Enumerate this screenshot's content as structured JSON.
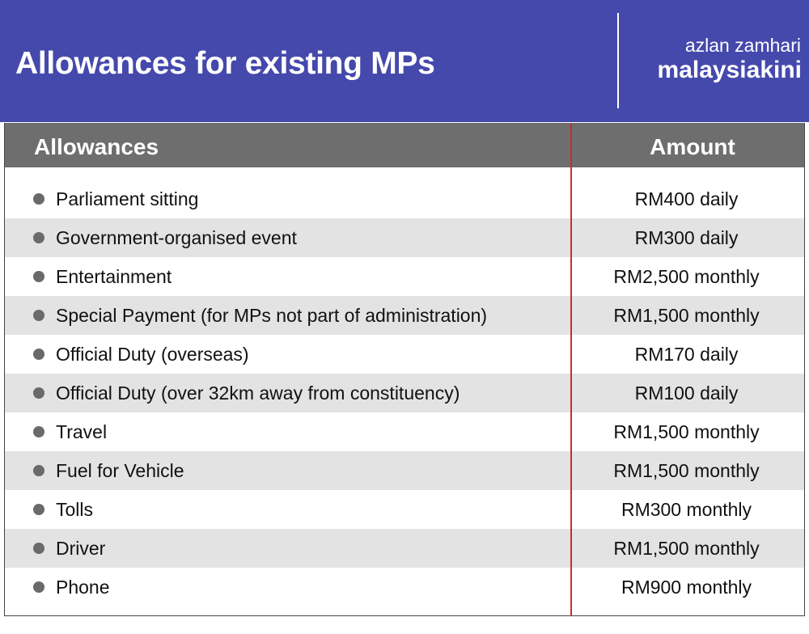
{
  "header": {
    "title": "Allowances for existing MPs",
    "author": "azlan zamhari",
    "brand": "malaysiakini"
  },
  "table": {
    "columns": [
      "Allowances",
      "Amount"
    ],
    "rows": [
      {
        "allowance": "Parliament sitting",
        "amount": "RM400 daily"
      },
      {
        "allowance": "Government-organised event",
        "amount": "RM300 daily"
      },
      {
        "allowance": "Entertainment",
        "amount": "RM2,500 monthly"
      },
      {
        "allowance": "Special Payment (for MPs not part of administration)",
        "amount": "RM1,500 monthly"
      },
      {
        "allowance": "Official Duty (overseas)",
        "amount": "RM170 daily"
      },
      {
        "allowance": "Official Duty (over 32km away from constituency)",
        "amount": "RM100 daily"
      },
      {
        "allowance": "Travel",
        "amount": "RM1,500 monthly"
      },
      {
        "allowance": "Fuel for Vehicle",
        "amount": "RM1,500 monthly"
      },
      {
        "allowance": "Tolls",
        "amount": "RM300 monthly"
      },
      {
        "allowance": "Driver",
        "amount": "RM1,500 monthly"
      },
      {
        "allowance": "Phone",
        "amount": "RM900 monthly"
      }
    ]
  },
  "colors": {
    "header_bg": "#4549ac",
    "table_header_bg": "#6e6e6e",
    "row_shade": "#e3e3e3",
    "divider_line": "#cc2b2b"
  }
}
